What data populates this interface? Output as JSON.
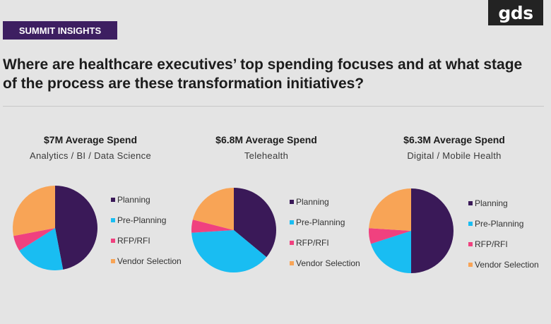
{
  "brand": {
    "logo_text": "gds"
  },
  "header": {
    "tag_label": "SUMMIT INSIGHTS",
    "headline": "Where are healthcare executives’ top spending focuses and at what stage of the process are these transformation initiatives?"
  },
  "colors": {
    "background": "#e4e4e4",
    "tag_background": "#3d1f61",
    "Planning": "#3a1958",
    "Pre-Planning": "#19bdf2",
    "RFP/RFI": "#f0417f",
    "Vendor Selection": "#f8a456"
  },
  "chart_data": [
    {
      "type": "pie",
      "title": "$7M Average Spend",
      "subtitle": "Analytics / BI / Data Science",
      "categories": [
        "Planning",
        "Pre-Planning",
        "RFP/RFI",
        "Vendor Selection"
      ],
      "values": [
        47,
        19,
        6,
        28
      ],
      "legend_position": "right"
    },
    {
      "type": "pie",
      "title": "$6.8M Average Spend",
      "subtitle": "Telehealth",
      "categories": [
        "Planning",
        "Pre-Planning",
        "RFP/RFI",
        "Vendor Selection"
      ],
      "values": [
        36,
        38,
        5,
        21
      ],
      "legend_position": "right"
    },
    {
      "type": "pie",
      "title": "$6.3M Average Spend",
      "subtitle": "Digital / Mobile Health",
      "categories": [
        "Planning",
        "Pre-Planning",
        "RFP/RFI",
        "Vendor Selection"
      ],
      "values": [
        50,
        20,
        6,
        24
      ],
      "legend_position": "right"
    }
  ]
}
